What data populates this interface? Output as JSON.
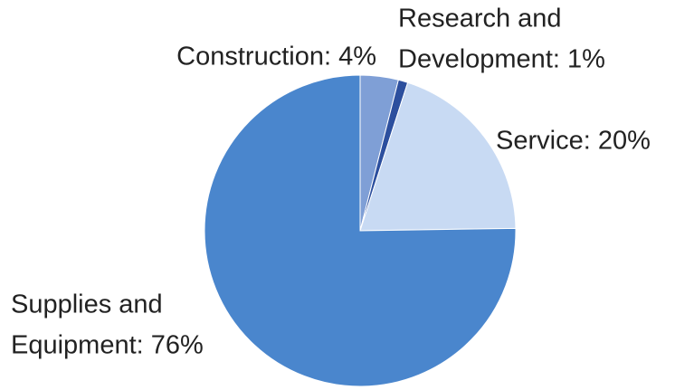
{
  "chart_data": {
    "type": "pie",
    "values": [
      4,
      1,
      20,
      76
    ],
    "value_labels": [
      [
        "Construction: 4%"
      ],
      [
        "Research and",
        "Development: 1%"
      ],
      [
        "Service: 20%"
      ],
      [
        "Supplies and",
        "Equipment: 76%"
      ]
    ],
    "colors": [
      "#7f9fd6",
      "#2c4f9e",
      "#c8daf3",
      "#4a86cd"
    ]
  }
}
